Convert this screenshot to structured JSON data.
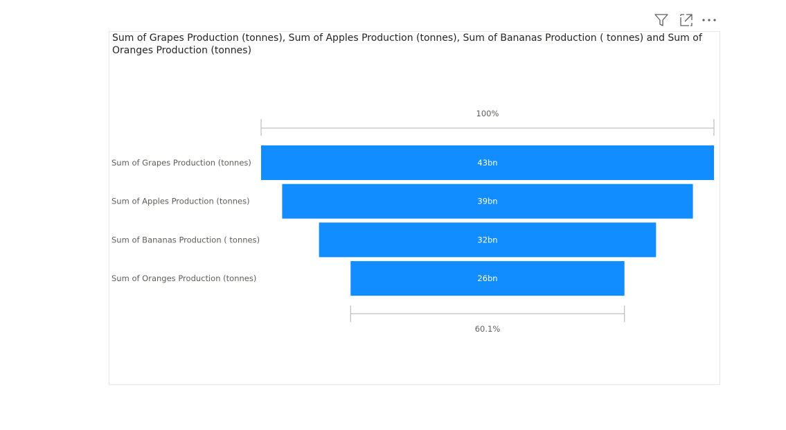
{
  "header": {
    "icons": [
      "filter-icon",
      "focus-mode-icon",
      "more-options-icon"
    ]
  },
  "colors": {
    "bar": "#118DFF",
    "bracket": "#b3b0ad",
    "label": "#605e5c"
  },
  "chart_data": {
    "type": "funnel",
    "title": "Sum of Grapes Production (tonnes), Sum of Apples Production (tonnes), Sum of Bananas Production ( tonnes) and Sum of Oranges Production (tonnes)",
    "categories": [
      "Sum of Grapes Production (tonnes)",
      "Sum of Apples Production (tonnes)",
      "Sum of Bananas Production ( tonnes)",
      "Sum of Oranges Production (tonnes)"
    ],
    "values": [
      43,
      39,
      32,
      26
    ],
    "value_unit": "bn",
    "data_labels": [
      "43bn",
      "39bn",
      "32bn",
      "26bn"
    ],
    "top_percent_label": "100%",
    "bottom_percent_label": "60.1%"
  }
}
